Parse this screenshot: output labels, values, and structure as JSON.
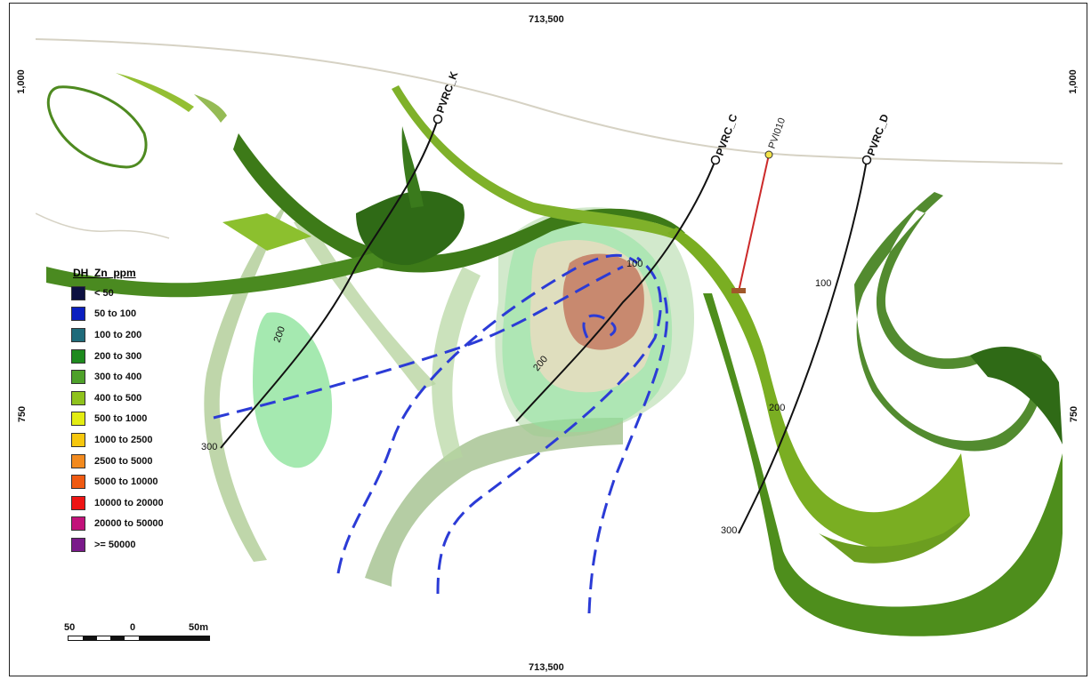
{
  "grid": {
    "easting_top": "713,500",
    "easting_bottom": "713,500",
    "elev_left_top": "1,000",
    "elev_left_bottom": "750",
    "elev_right_top": "1,000",
    "elev_right_bottom": "750"
  },
  "holes": [
    {
      "id": "PVRC_K",
      "depths": [
        "200",
        "300"
      ],
      "color": "#111111"
    },
    {
      "id": "PVRC_C",
      "depths": [
        "100",
        "200"
      ],
      "color": "#111111"
    },
    {
      "id": "PVI010",
      "depths": [],
      "color": "#cc2a2a"
    },
    {
      "id": "PVRC_D",
      "depths": [
        "100",
        "200",
        "300"
      ],
      "color": "#111111"
    }
  ],
  "legend": {
    "title": "DH_Zn_ppm",
    "items": [
      {
        "label": "< 50",
        "color": "#0d1040"
      },
      {
        "label": "50 to 100",
        "color": "#0b1fbf"
      },
      {
        "label": "100 to 200",
        "color": "#1f6b7a"
      },
      {
        "label": "200 to 300",
        "color": "#1e8a1e"
      },
      {
        "label": "300 to 400",
        "color": "#4ea12a"
      },
      {
        "label": "400 to 500",
        "color": "#8fc21d"
      },
      {
        "label": "500 to 1000",
        "color": "#e3ec12"
      },
      {
        "label": "1000 to 2500",
        "color": "#f6c70e"
      },
      {
        "label": "2500 to 5000",
        "color": "#f28a1f"
      },
      {
        "label": "5000 to 10000",
        "color": "#ef5a12"
      },
      {
        "label": "10000 to 20000",
        "color": "#ee1414"
      },
      {
        "label": "20000 to 50000",
        "color": "#c2127a"
      },
      {
        "label": ">= 50000",
        "color": "#7a1a8a"
      }
    ]
  },
  "scale": {
    "left_label": "50",
    "mid_label": "0",
    "right_label": "50m"
  },
  "colors": {
    "dark_green": "#2f6a16",
    "mid_green": "#5d9e28",
    "light_green": "#9cc83a",
    "pale_green": "#c8dcb2",
    "translucent_green": "#8fe3a1",
    "fault_blue": "#2b3bd6",
    "topo_line": "#d8d4c8",
    "ore_core": "#c47a62",
    "ore_shell": "#e2d2b0"
  }
}
